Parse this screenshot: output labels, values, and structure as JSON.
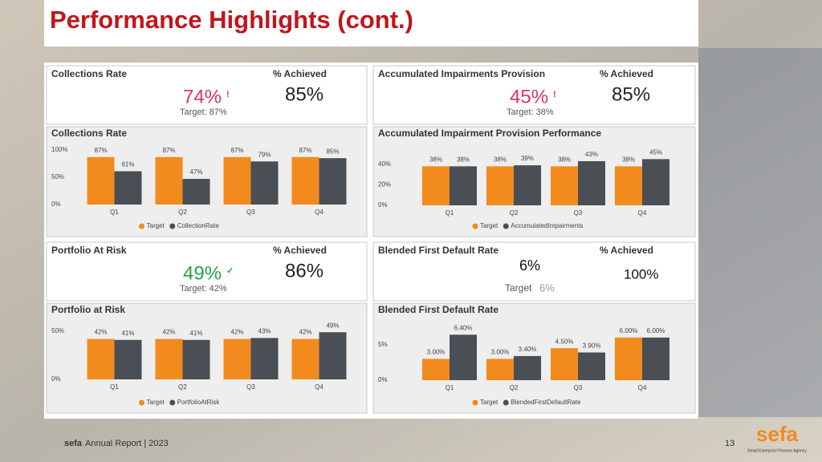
{
  "header": {
    "title": "Performance Highlights (cont.)"
  },
  "kpis": [
    {
      "title": "Collections Rate",
      "value": "74%",
      "flag": "!",
      "target": "Target: 87%",
      "achieved_label": "% Achieved",
      "achieved": "85%"
    },
    {
      "title": "Accumulated Impairments Provision",
      "value": "45%",
      "flag": "!",
      "target": "Target: 38%",
      "achieved_label": "% Achieved",
      "achieved": "85%"
    },
    {
      "title": "Portfolio At Risk",
      "value": "49%",
      "flag": "✓",
      "target": "Target: 42%",
      "achieved_label": "% Achieved",
      "achieved": "86%"
    },
    {
      "title": "Blended First Default Rate",
      "value": "6%",
      "target": "Target",
      "target_value": "6%",
      "achieved_label": "% Achieved",
      "achieved": "100%"
    }
  ],
  "chart_data": [
    {
      "type": "bar",
      "title": "Collections Rate",
      "categories": [
        "Q1",
        "Q2",
        "Q3",
        "Q4"
      ],
      "series": [
        {
          "name": "Target",
          "color": "#f28a1e",
          "values": [
            87,
            87,
            87,
            87
          ],
          "value_labels": [
            "87%",
            "87%",
            "87%",
            "87%"
          ]
        },
        {
          "name": "CollectionRate",
          "color": "#4a4f55",
          "values": [
            61,
            47,
            79,
            85
          ],
          "value_labels": [
            "61%",
            "47%",
            "79%",
            "85%"
          ]
        }
      ],
      "ylim": [
        0,
        100
      ],
      "yticks": [
        {
          "value": 0,
          "label": "0%"
        },
        {
          "value": 50,
          "label": "50%"
        },
        {
          "value": 100,
          "label": "100%"
        }
      ]
    },
    {
      "type": "bar",
      "title": "Accumulated Impairment Provision Performance",
      "categories": [
        "Q1",
        "Q2",
        "Q3",
        "Q4"
      ],
      "series": [
        {
          "name": "Target",
          "color": "#f28a1e",
          "values": [
            38,
            38,
            38,
            38
          ],
          "value_labels": [
            "38%",
            "38%",
            "38%",
            "38%"
          ]
        },
        {
          "name": "AccumulatedImpairments",
          "color": "#4a4f55",
          "values": [
            38,
            39,
            43,
            45
          ],
          "value_labels": [
            "38%",
            "39%",
            "43%",
            "45%"
          ]
        }
      ],
      "ylim": [
        0,
        50
      ],
      "yticks": [
        {
          "value": 0,
          "label": "0%"
        },
        {
          "value": 20,
          "label": "20%"
        },
        {
          "value": 40,
          "label": "40%"
        }
      ]
    },
    {
      "type": "bar",
      "title": "Portfolio at Risk",
      "categories": [
        "Q1",
        "Q2",
        "Q3",
        "Q4"
      ],
      "series": [
        {
          "name": "Target",
          "color": "#f28a1e",
          "values": [
            42,
            42,
            42,
            42
          ],
          "value_labels": [
            "42%",
            "42%",
            "42%",
            "42%"
          ]
        },
        {
          "name": "PortfolioAtRisk",
          "color": "#4a4f55",
          "values": [
            41,
            41,
            43,
            49
          ],
          "value_labels": [
            "41%",
            "41%",
            "43%",
            "49%"
          ]
        }
      ],
      "ylim": [
        0,
        50
      ],
      "yticks": [
        {
          "value": 0,
          "label": "0%"
        },
        {
          "value": 50,
          "label": "50%"
        }
      ]
    },
    {
      "type": "bar",
      "title": "Blended First Default Rate",
      "categories": [
        "Q1",
        "Q2",
        "Q3",
        "Q4"
      ],
      "series": [
        {
          "name": "Target",
          "color": "#f28a1e",
          "values": [
            3.0,
            3.0,
            4.5,
            6.0
          ],
          "value_labels": [
            "3.00%",
            "3.00%",
            "4.50%",
            "6.00%"
          ]
        },
        {
          "name": "BlendedFirstDefaultRate",
          "color": "#4a4f55",
          "values": [
            6.4,
            3.4,
            3.9,
            6.0
          ],
          "value_labels": [
            "6.40%",
            "3.40%",
            "3.90%",
            "6.00%"
          ]
        }
      ],
      "ylim": [
        0,
        7
      ],
      "yticks": [
        {
          "value": 0,
          "label": "0%"
        },
        {
          "value": 5,
          "label": "5%"
        }
      ]
    }
  ],
  "footer": {
    "brand": "sefa",
    "report": "Annual Report | 2023",
    "page": "13",
    "logo": "sefa",
    "logo_caption": "Small Enterprise Finance Agency"
  }
}
